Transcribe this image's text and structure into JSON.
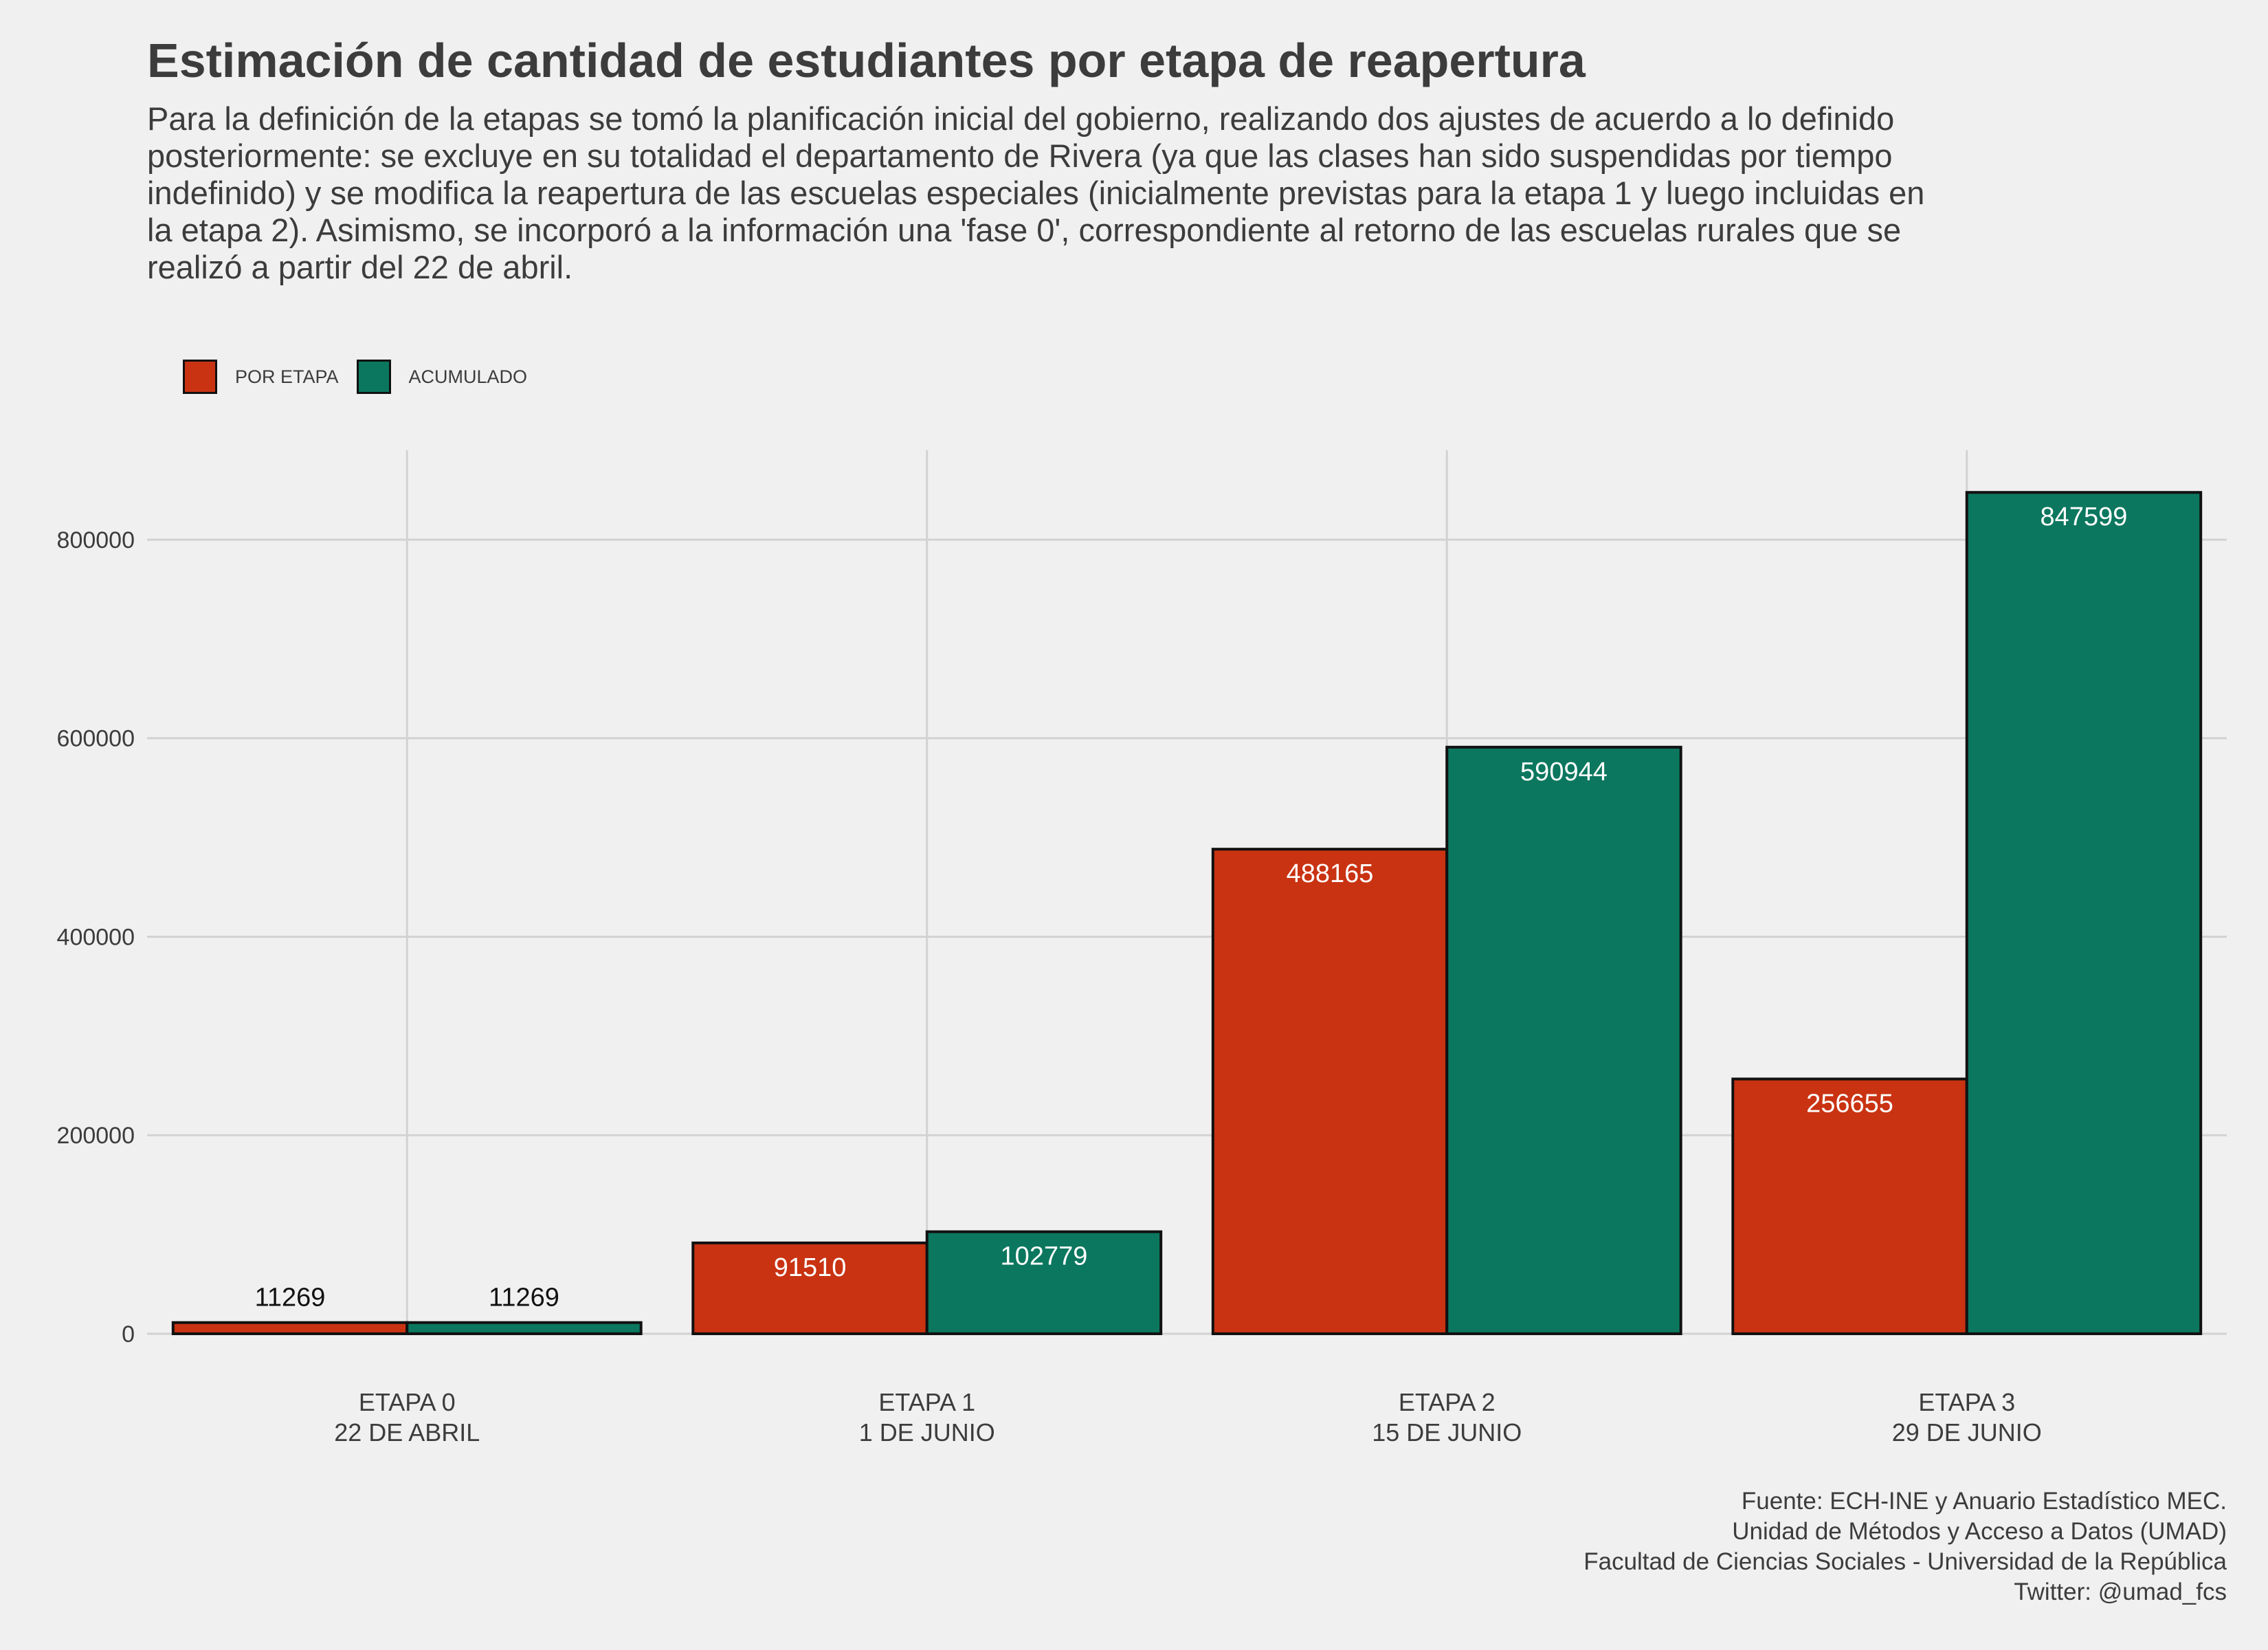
{
  "title": "Estimación de cantidad de estudiantes por etapa de reapertura",
  "subtitle_lines": [
    "Para la definición de la etapas se tomó la planificación inicial del gobierno, realizando dos ajustes de acuerdo a lo definido",
    "posteriormente: se excluye en su totalidad el departamento de Rivera (ya que las clases han sido suspendidas por tiempo",
    "indefinido) y se modifica la reapertura de las escuelas especiales (inicialmente previstas para la etapa 1 y luego incluidas en",
    "la etapa 2). Asimismo, se incorporó a la información una 'fase 0', correspondiente al retorno de las escuelas rurales que se",
    "realizó a partir del 22 de abril."
  ],
  "caption_lines": [
    "Fuente: ECH-INE y Anuario Estadístico MEC.",
    "Unidad de Métodos y Acceso a Datos (UMAD)",
    "Facultad de Ciencias Sociales - Universidad de la República",
    "Twitter: @umad_fcs"
  ],
  "colors": {
    "background": "#f0f0f0",
    "grid": "#d2d2d2",
    "por_etapa": "#c93312",
    "acumulado": "#0b775e",
    "bar_border": "#111111"
  },
  "chart_data": {
    "type": "bar",
    "title": "Estimación de cantidad de estudiantes por etapa de reapertura",
    "xlabel": "",
    "ylabel": "",
    "categories": [
      [
        "ETAPA 0",
        "22 DE ABRIL"
      ],
      [
        "ETAPA 1",
        "1 DE JUNIO"
      ],
      [
        "ETAPA 2",
        "15 DE JUNIO"
      ],
      [
        "ETAPA 3",
        "29 DE JUNIO"
      ]
    ],
    "series": [
      {
        "name": "POR ETAPA",
        "color": "#c93312",
        "values": [
          11269,
          91510,
          488165,
          256655
        ]
      },
      {
        "name": "ACUMULADO",
        "color": "#0b775e",
        "values": [
          11269,
          102779,
          590944,
          847599
        ]
      }
    ],
    "data_labels": [
      [
        "11269",
        "91510",
        "488165",
        "256655"
      ],
      [
        "11269",
        "102779",
        "590944",
        "847599"
      ]
    ],
    "yticks": [
      "0",
      "200000",
      "400000",
      "600000",
      "800000"
    ],
    "ylim": [
      0,
      890000
    ],
    "grid": true,
    "legend_position": "top-left"
  }
}
